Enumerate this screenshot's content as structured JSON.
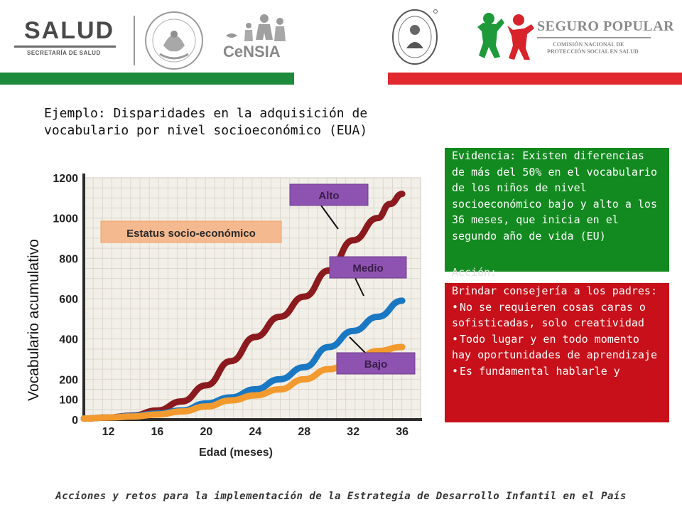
{
  "header": {
    "salud_logo": {
      "word": "SALUD",
      "subtitle": "SECRETARÍA DE SALUD"
    },
    "seal_icon": "mexico-coat-of-arms-icon",
    "censia_logo": {
      "word": "CeNSIA"
    },
    "hospital_seal_icon": "hospital-infantil-seal-icon",
    "seguro_popular_logo": {
      "title": "SEGURO POPULAR",
      "line1": "COMISIÓN NACIONAL DE",
      "line2": "PROTECCIÓN SOCIAL EN SALUD"
    }
  },
  "colors": {
    "green_bar": "#1e8a3c",
    "red_bar": "#e0282e",
    "evidence_bg": "#128a1f",
    "action_bg": "#c7101a"
  },
  "title": "Ejemplo: Disparidades en la adquisición de vocabulario por nivel socioeconómico (EUA)",
  "chart_data": {
    "type": "line",
    "xlabel": "Edad (meses)",
    "ylabel": "Vocabulario acumulativo",
    "x_ticks": [
      12,
      16,
      20,
      24,
      28,
      32,
      36
    ],
    "y_ticks": [
      0,
      100,
      200,
      400,
      600,
      800,
      1000,
      1200
    ],
    "xlim": [
      10,
      37.5
    ],
    "ylim": [
      0,
      1200
    ],
    "grid": true,
    "legend_title": "Estatus socio-económico",
    "series": [
      {
        "name": "Alto",
        "color": "#8b1a1e",
        "x": [
          10,
          12,
          14,
          16,
          18,
          20,
          22,
          24,
          26,
          28,
          30,
          32,
          34,
          35,
          36
        ],
        "y": [
          5,
          10,
          20,
          45,
          90,
          170,
          290,
          410,
          510,
          610,
          740,
          890,
          1000,
          1070,
          1120
        ]
      },
      {
        "name": "Medio",
        "color": "#1a78c2",
        "x": [
          10,
          12,
          14,
          16,
          18,
          20,
          22,
          24,
          26,
          28,
          30,
          32,
          34,
          36
        ],
        "y": [
          5,
          10,
          18,
          30,
          45,
          80,
          110,
          150,
          200,
          260,
          360,
          440,
          510,
          590
        ]
      },
      {
        "name": "Bajo",
        "color": "#f29a2e",
        "x": [
          10,
          12,
          14,
          16,
          18,
          20,
          22,
          24,
          26,
          28,
          30,
          32,
          34,
          36
        ],
        "y": [
          5,
          10,
          15,
          25,
          40,
          65,
          95,
          120,
          150,
          200,
          250,
          290,
          340,
          360
        ]
      }
    ]
  },
  "evidence_box": {
    "text": "Evidencia: Existen diferencias de más del 50% en el vocabulario de los niños de nivel socioeconómico bajo y alto a los 36 meses, que inicia en el segundo año de vida (EU)"
  },
  "action_box": {
    "heading": "Acción:",
    "intro": "Brindar consejería a los padres:",
    "bullets": [
      "No se requieren cosas caras o sofisticadas, solo creatividad",
      "Todo lugar y en todo momento hay oportunidades de aprendizaje",
      "Es fundamental hablarle y"
    ]
  },
  "footer": "Acciones y retos para la implementación de la Estrategia de Desarrollo Infantil en el País"
}
